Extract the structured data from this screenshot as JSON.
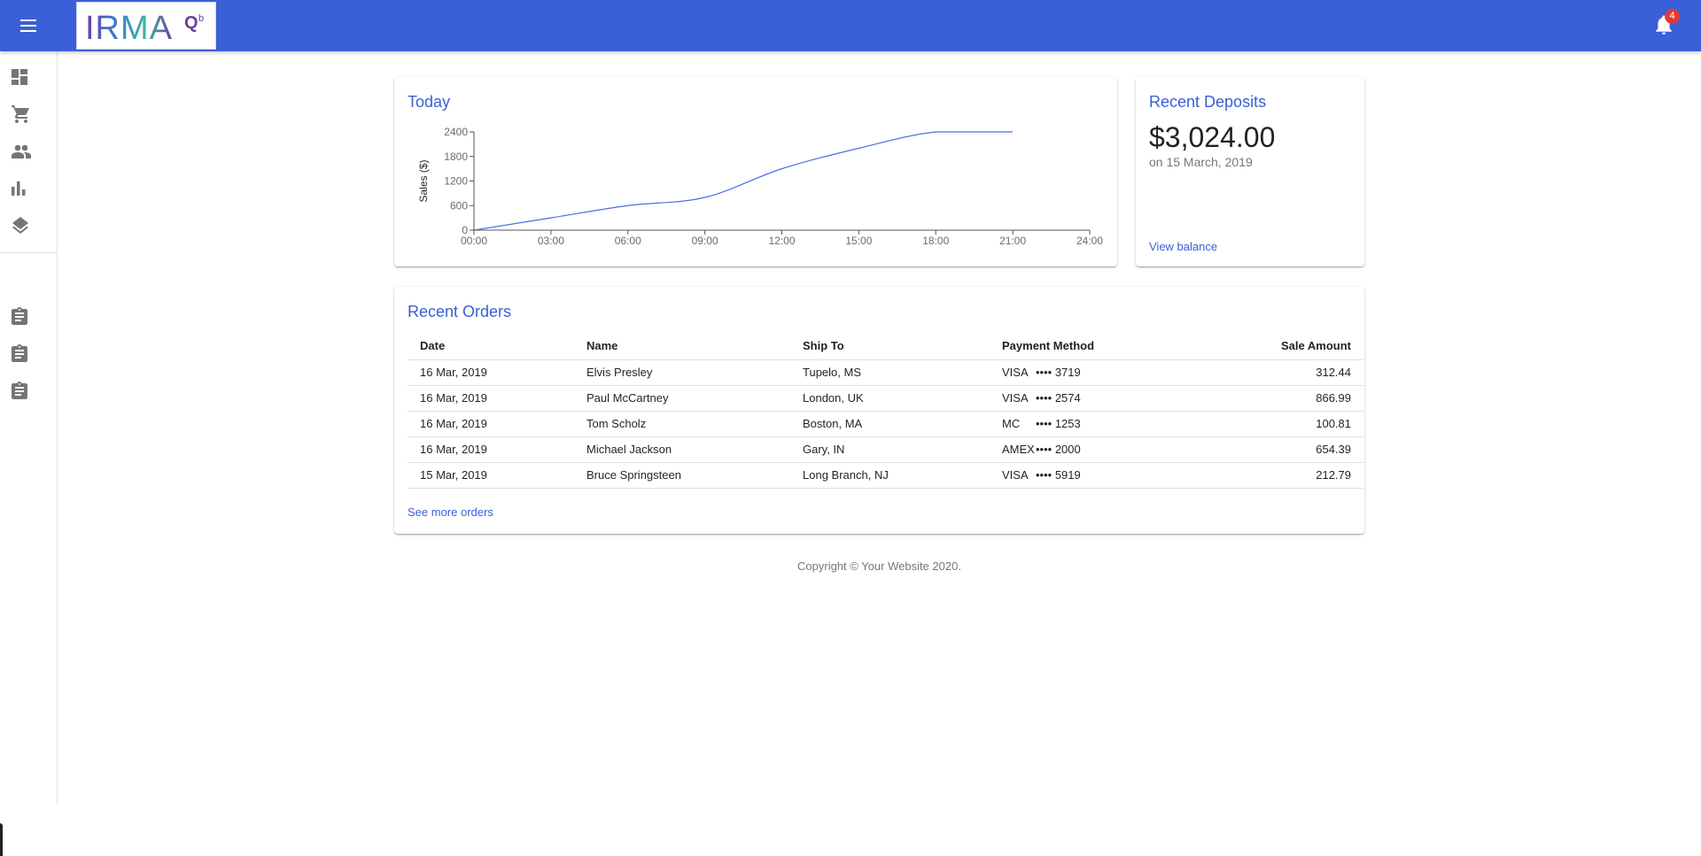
{
  "header": {
    "logo_text": "IRMAQb",
    "notification_count": "4",
    "menu_icon": "menu-icon",
    "bell_icon": "bell-icon"
  },
  "drawer": {
    "items": [
      {
        "name": "dashboard",
        "icon": "dashboard-icon"
      },
      {
        "name": "orders",
        "icon": "cart-icon"
      },
      {
        "name": "customers",
        "icon": "people-icon"
      },
      {
        "name": "reports",
        "icon": "bar-chart-icon"
      },
      {
        "name": "integrations",
        "icon": "layers-icon"
      }
    ],
    "secondary_items": [
      {
        "name": "report-1",
        "icon": "assignment-icon"
      },
      {
        "name": "report-2",
        "icon": "assignment-icon"
      },
      {
        "name": "report-3",
        "icon": "assignment-icon"
      }
    ]
  },
  "today": {
    "title": "Today",
    "chart_data": {
      "type": "line",
      "title": "Today",
      "xlabel": "",
      "ylabel": "Sales ($)",
      "x": [
        "00:00",
        "03:00",
        "06:00",
        "09:00",
        "12:00",
        "15:00",
        "18:00",
        "21:00",
        "24:00"
      ],
      "series": [
        {
          "name": "Sales",
          "x": [
            "00:00",
            "03:00",
            "06:00",
            "09:00",
            "12:00",
            "15:00",
            "18:00",
            "21:00"
          ],
          "values": [
            0,
            300,
            600,
            800,
            1500,
            2000,
            2400,
            2400
          ]
        }
      ],
      "yticks": [
        0,
        600,
        1200,
        1800,
        2400
      ],
      "ylim": [
        0,
        2400
      ],
      "xlim": [
        0,
        24
      ],
      "color": "#4a6fe0"
    }
  },
  "deposits": {
    "title": "Recent Deposits",
    "amount": "$3,024.00",
    "date": "on 15 March, 2019",
    "link": "View balance"
  },
  "orders": {
    "title": "Recent Orders",
    "columns": [
      "Date",
      "Name",
      "Ship To",
      "Payment Method",
      "Sale Amount"
    ],
    "rows": [
      {
        "date": "16 Mar, 2019",
        "name": "Elvis Presley",
        "ship_to": "Tupelo, MS",
        "pm_type": "VISA",
        "pm_num": "•••• 3719",
        "amount": "312.44"
      },
      {
        "date": "16 Mar, 2019",
        "name": "Paul McCartney",
        "ship_to": "London, UK",
        "pm_type": "VISA",
        "pm_num": "•••• 2574",
        "amount": "866.99"
      },
      {
        "date": "16 Mar, 2019",
        "name": "Tom Scholz",
        "ship_to": "Boston, MA",
        "pm_type": "MC",
        "pm_num": "•••• 1253",
        "amount": "100.81"
      },
      {
        "date": "16 Mar, 2019",
        "name": "Michael Jackson",
        "ship_to": "Gary, IN",
        "pm_type": "AMEX",
        "pm_num": "•••• 2000",
        "amount": "654.39"
      },
      {
        "date": "15 Mar, 2019",
        "name": "Bruce Springsteen",
        "ship_to": "Long Branch, NJ",
        "pm_type": "VISA",
        "pm_num": "•••• 5919",
        "amount": "212.79"
      }
    ],
    "link": "See more orders"
  },
  "footer": {
    "copyright": "Copyright © Your Website 2020."
  }
}
